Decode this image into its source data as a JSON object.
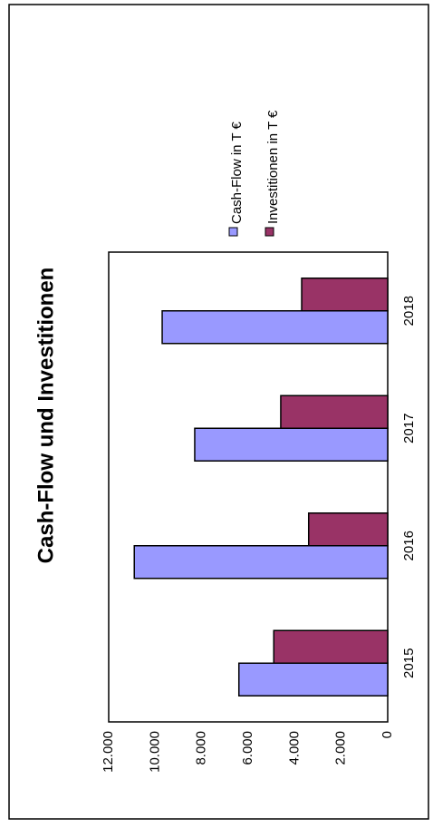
{
  "chart_data": {
    "type": "bar",
    "title": "Cash-Flow und Investitionen",
    "categories": [
      "2015",
      "2016",
      "2017",
      "2018"
    ],
    "series": [
      {
        "name": "Cash-Flow in T €",
        "values": [
          6400,
          10900,
          8300,
          9700
        ],
        "color": "#9999ff"
      },
      {
        "name": "Investitionen in T €",
        "values": [
          4900,
          3400,
          4600,
          3700
        ],
        "color": "#993366"
      }
    ],
    "ylim": [
      0,
      12000
    ],
    "y_ticks": [
      "0",
      "2.000",
      "4.000",
      "6.000",
      "8.000",
      "10.000",
      "12.000"
    ],
    "xlabel": "",
    "ylabel": "",
    "orientation": "rotated 90° counter-clockwise",
    "grid": false,
    "legend_position": "top"
  }
}
